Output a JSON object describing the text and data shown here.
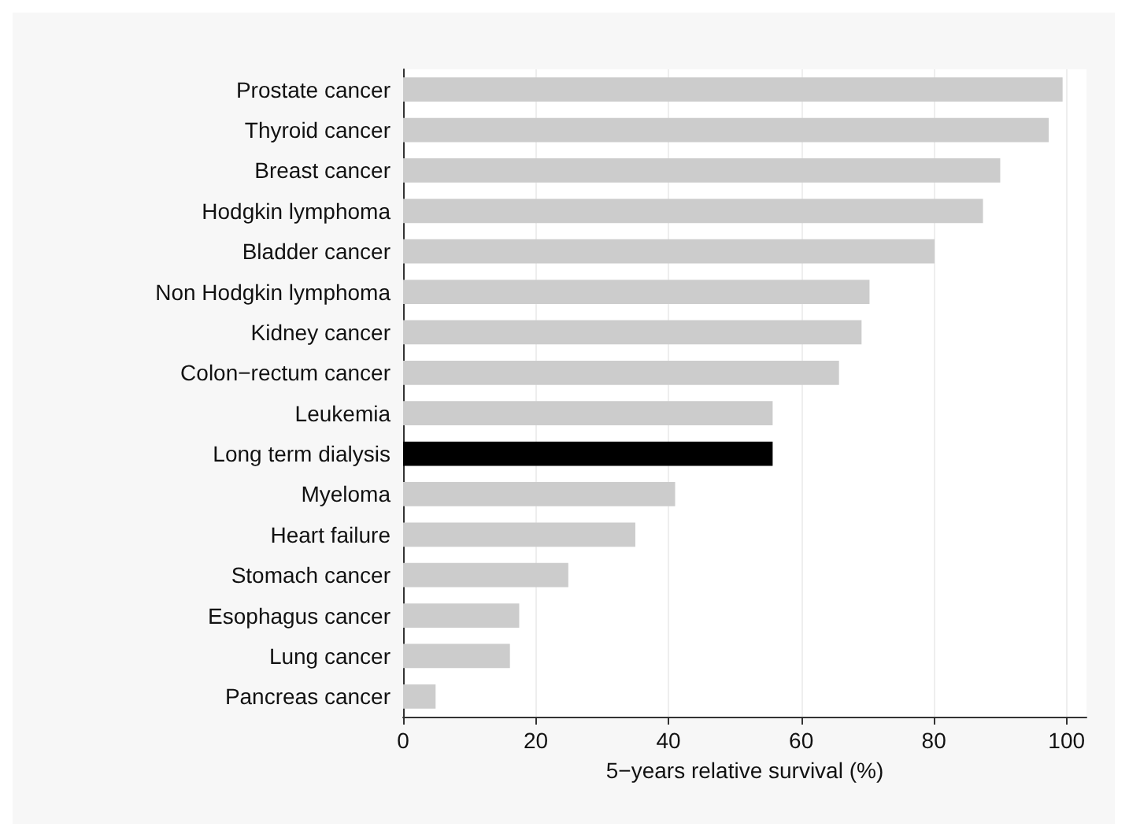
{
  "chart_data": {
    "type": "bar",
    "orientation": "horizontal",
    "xlabel": "5−years relative survival (%)",
    "categories": [
      "Prostate cancer",
      "Thyroid cancer",
      "Breast cancer",
      "Hodgkin lymphoma",
      "Bladder cancer",
      "Non Hodgkin lymphoma",
      "Kidney cancer",
      "Colon−rectum cancer",
      "Leukemia",
      "Long term dialysis",
      "Myeloma",
      "Heart failure",
      "Stomach cancer",
      "Esophagus cancer",
      "Lung cancer",
      "Pancreas cancer"
    ],
    "values": [
      99.4,
      97.3,
      90.0,
      87.4,
      80.1,
      70.3,
      69.1,
      65.7,
      55.7,
      55.7,
      41.0,
      35.0,
      24.9,
      17.5,
      16.1,
      4.9
    ],
    "colors": [
      "#cccccc",
      "#cccccc",
      "#cccccc",
      "#cccccc",
      "#cccccc",
      "#cccccc",
      "#cccccc",
      "#cccccc",
      "#cccccc",
      "#000000",
      "#cccccc",
      "#cccccc",
      "#cccccc",
      "#cccccc",
      "#cccccc",
      "#cccccc"
    ],
    "xlim": [
      0,
      103
    ],
    "xticks": [
      0,
      20,
      40,
      60,
      80,
      100
    ],
    "grid": "x"
  }
}
